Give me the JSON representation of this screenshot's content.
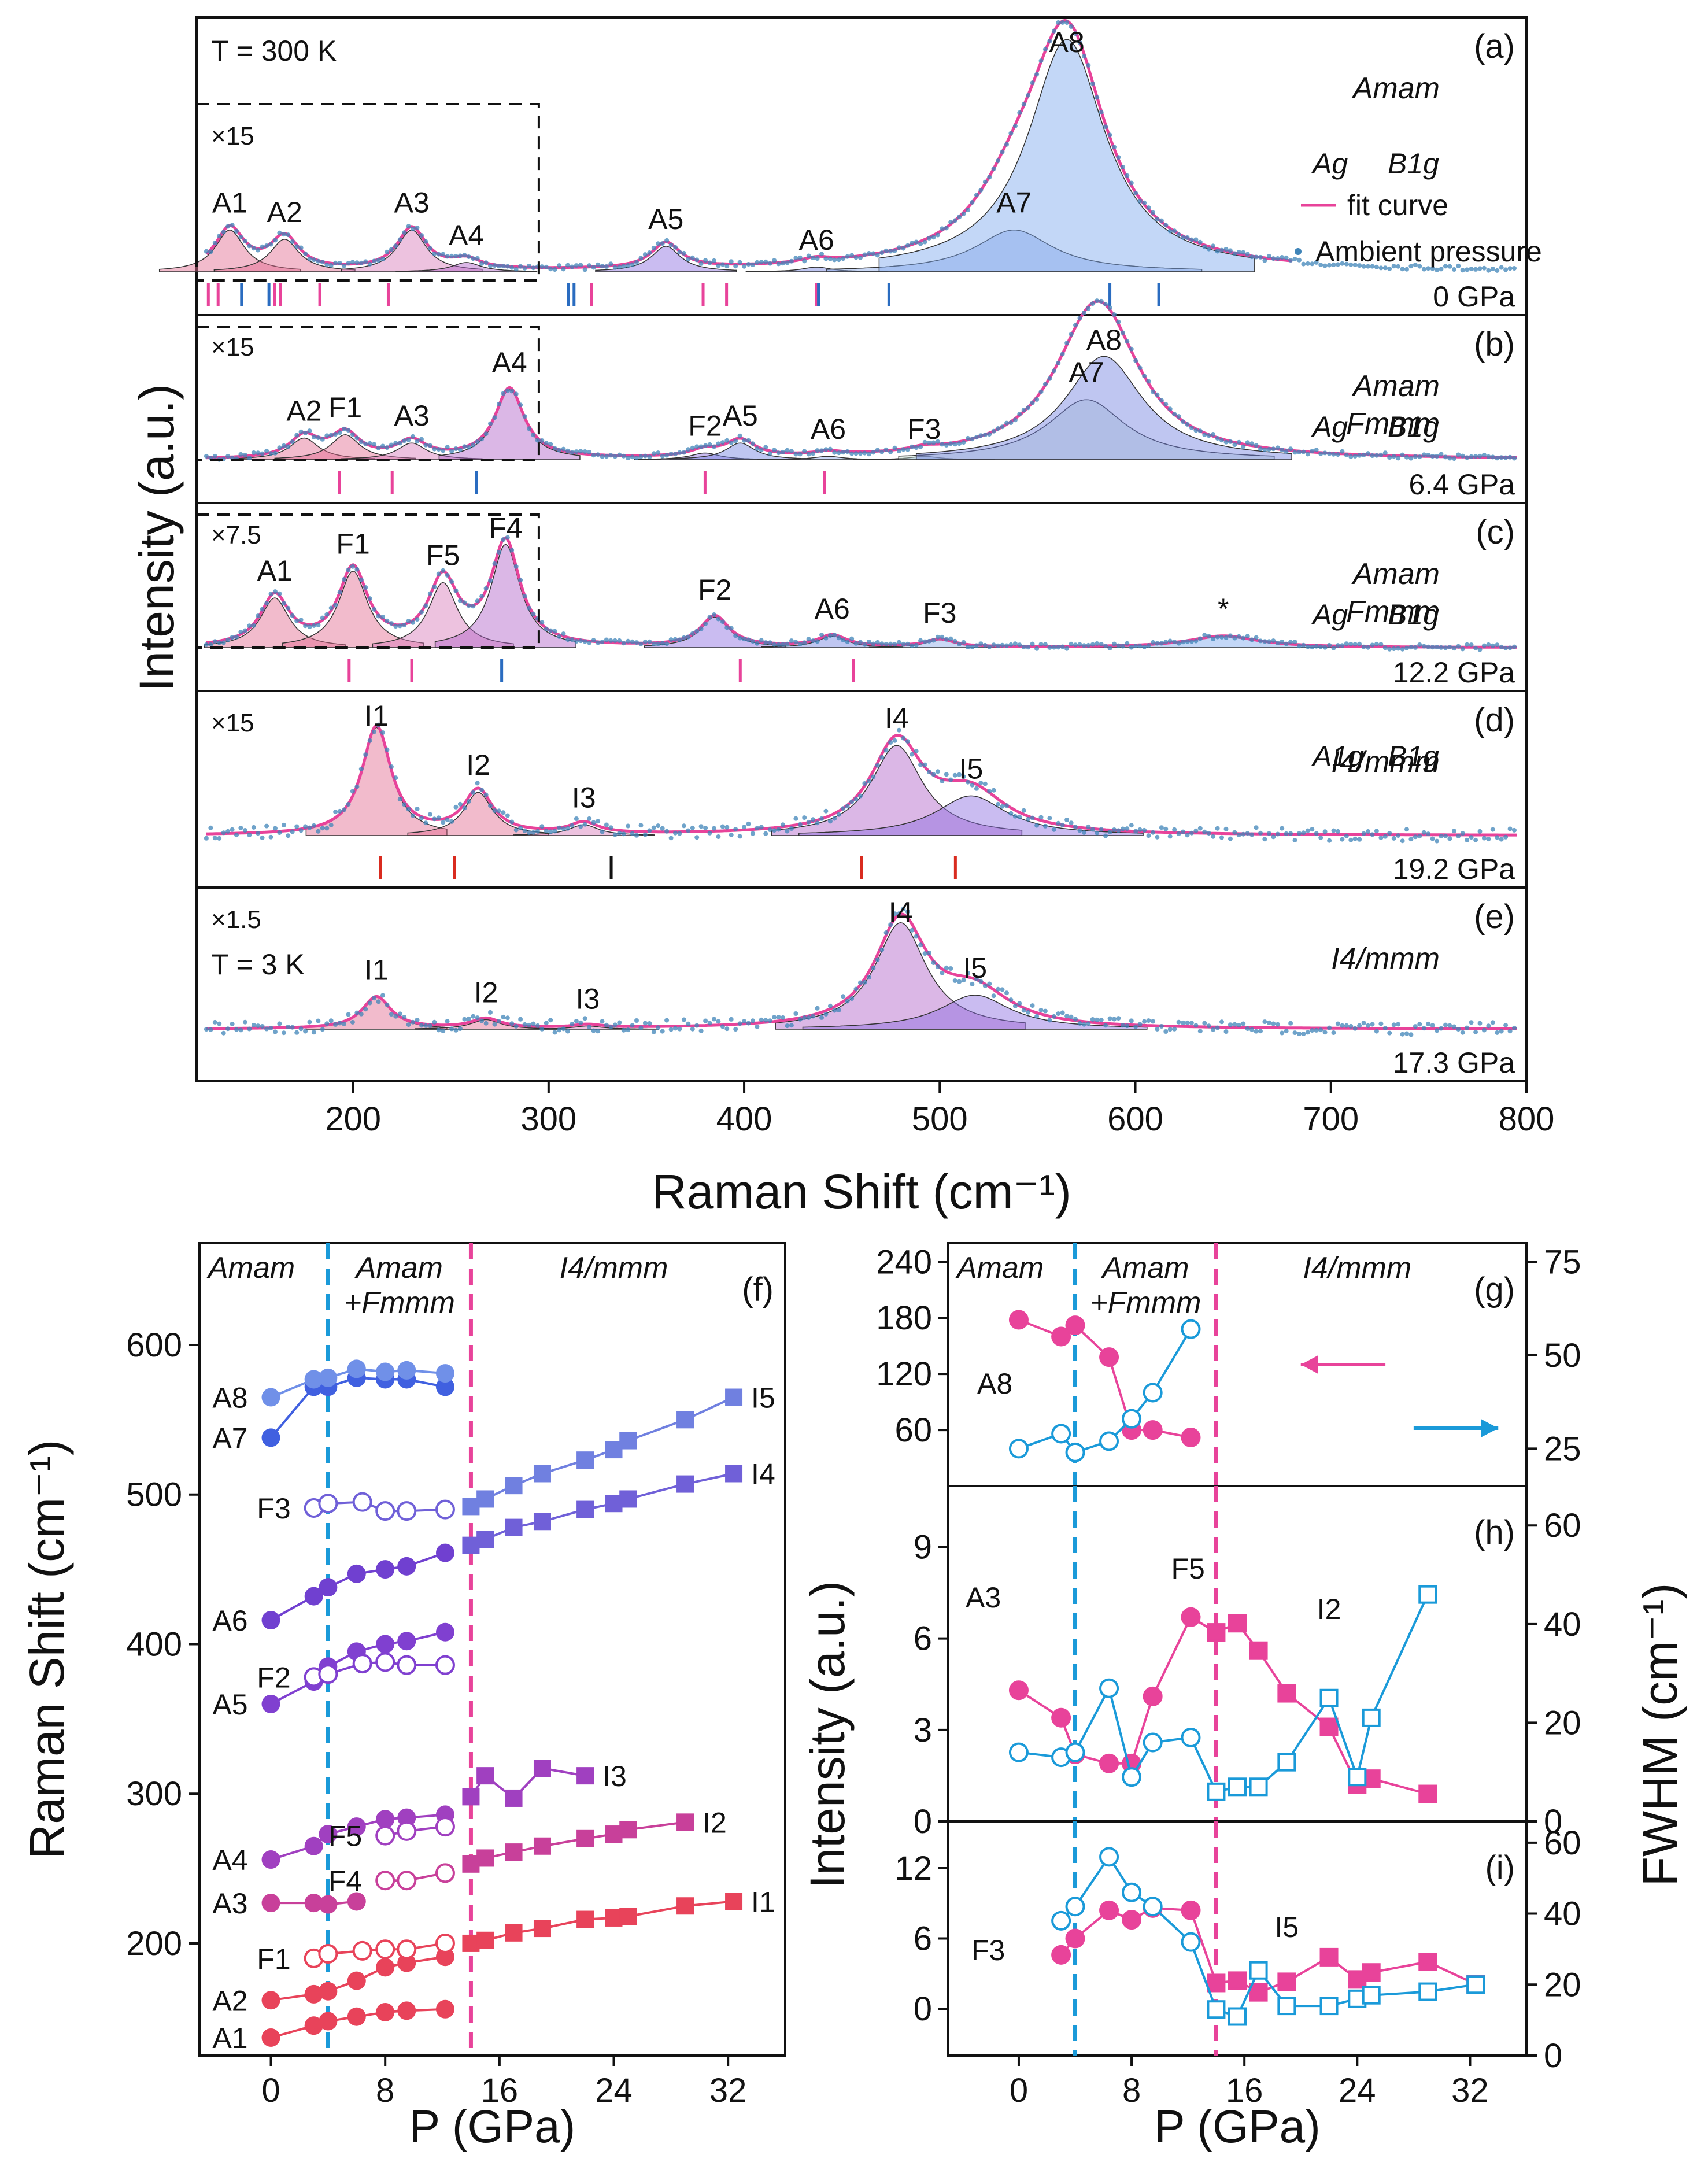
{
  "raman_spectra": {
    "xlabel": "Raman Shift (cm⁻¹)",
    "xticks": [
      "200",
      "300",
      "400",
      "500",
      "600",
      "700",
      "800"
    ],
    "ylabel": "Intensity (a.u.)",
    "panels": [
      {
        "id": "(a)",
        "pressure": "0 GPa",
        "temperature": "T = 300 K",
        "zoom": "×15",
        "phase_labels": [
          "Amam"
        ],
        "legend_items": [
          "Ag",
          "B1g",
          "fit curve",
          "Ambient pressure"
        ],
        "peaks": [
          {
            "label": "A1",
            "position": 137,
            "height": 0.18
          },
          {
            "label": "A2",
            "position": 165,
            "height": 0.14
          },
          {
            "label": "A3",
            "position": 230,
            "height": 0.18
          },
          {
            "label": "A4",
            "position": 258,
            "height": 0.04
          },
          {
            "label": "A5",
            "position": 360,
            "height": 0.11
          },
          {
            "label": "A6",
            "position": 437,
            "height": 0.02
          },
          {
            "label": "A7",
            "position": 538,
            "height": 0.18
          },
          {
            "label": "A8",
            "position": 565,
            "height": 1.0
          }
        ],
        "ag_ticks": [
          126,
          131,
          160,
          163,
          183,
          218,
          322,
          379,
          391,
          437
        ],
        "b1g_ticks": [
          143,
          157,
          310,
          313,
          438,
          474,
          587,
          612
        ]
      },
      {
        "id": "(b)",
        "pressure": "6.4 GPa",
        "zoom": "×15",
        "phase_labels": [
          "Amam",
          "Fmmm"
        ],
        "legend_items": [
          "Ag",
          "B1g"
        ],
        "peaks": [
          {
            "label": "A2",
            "position": 175,
            "height": 0.13
          },
          {
            "label": "F1",
            "position": 196,
            "height": 0.15
          },
          {
            "label": "A3",
            "position": 230,
            "height": 0.1
          },
          {
            "label": "A4",
            "position": 280,
            "height": 0.42
          },
          {
            "label": "F2",
            "position": 380,
            "height": 0.04
          },
          {
            "label": "A5",
            "position": 398,
            "height": 0.1
          },
          {
            "label": "A6",
            "position": 443,
            "height": 0.02
          },
          {
            "label": "F3",
            "position": 492,
            "height": 0.02
          },
          {
            "label": "A7",
            "position": 575,
            "height": 0.36
          },
          {
            "label": "A8",
            "position": 584,
            "height": 0.62
          }
        ],
        "ag_ticks": [
          193,
          220,
          380,
          441
        ],
        "b1g_ticks": [
          263
        ]
      },
      {
        "id": "(c)",
        "pressure": "12.2 GPa",
        "zoom": "×7.5",
        "phase_labels": [
          "Amam",
          "Fmmm"
        ],
        "legend_items": [
          "Ag",
          "B1g"
        ],
        "annotation": "*",
        "peaks": [
          {
            "label": "A1",
            "position": 160,
            "height": 0.13
          },
          {
            "label": "F1",
            "position": 200,
            "height": 0.2
          },
          {
            "label": "F5",
            "position": 246,
            "height": 0.17
          },
          {
            "label": "F4",
            "position": 278,
            "height": 0.27
          },
          {
            "label": "F2",
            "position": 385,
            "height": 0.08
          },
          {
            "label": "A6",
            "position": 445,
            "height": 0.03
          },
          {
            "label": "F3",
            "position": 500,
            "height": 0.02
          },
          {
            "label": "*",
            "position": 645,
            "height": 0.03
          }
        ],
        "ag_ticks": [
          198,
          230,
          398,
          456
        ],
        "b1g_ticks": [
          276
        ]
      },
      {
        "id": "(d)",
        "pressure": "19.2 GPa",
        "zoom": "×15",
        "phase_labels": [
          "I4/mmm"
        ],
        "legend_items": [
          "A1g",
          "B1g"
        ],
        "peaks": [
          {
            "label": "I1",
            "position": 212,
            "height": 0.6
          },
          {
            "label": "I2",
            "position": 264,
            "height": 0.24
          },
          {
            "label": "I3",
            "position": 318,
            "height": 0.06
          },
          {
            "label": "I4",
            "position": 478,
            "height": 0.5
          },
          {
            "label": "I5",
            "position": 516,
            "height": 0.22
          }
        ],
        "a1g_ticks": [
          214,
          252,
          460,
          508
        ],
        "b1g_ticks": [
          332
        ]
      },
      {
        "id": "(e)",
        "pressure": "17.3 GPa",
        "temperature": "T = 3 K",
        "zoom": "×1.5",
        "phase_labels": [
          "I4/mmm"
        ],
        "peaks": [
          {
            "label": "I1",
            "position": 212,
            "height": 0.3
          },
          {
            "label": "I2",
            "position": 268,
            "height": 0.09
          },
          {
            "label": "I3",
            "position": 320,
            "height": 0.03
          },
          {
            "label": "I4",
            "position": 480,
            "height": 1.0
          },
          {
            "label": "I5",
            "position": 518,
            "height": 0.32
          }
        ]
      }
    ]
  },
  "chart_data": [
    {
      "type": "scatter",
      "id": "(f)",
      "xlabel": "P (GPa)",
      "ylabel": "Raman Shift (cm⁻¹)",
      "xlim": [
        -5,
        36
      ],
      "ylim": [
        125,
        668
      ],
      "xticks": [
        0,
        8,
        16,
        24,
        32
      ],
      "yticks": [
        200,
        300,
        400,
        500,
        600
      ],
      "phase_labels": [
        "Amam",
        "Amam",
        "+Fmmm",
        "I4/mmm"
      ],
      "phase_boundaries": [
        4,
        14
      ],
      "series": [
        {
          "name": "A1",
          "x": [
            0,
            3,
            4,
            6,
            8,
            9.5,
            12.2
          ],
          "y": [
            137,
            145,
            148,
            151,
            154,
            155,
            156
          ],
          "color": "#e8435a",
          "marker": "circle"
        },
        {
          "name": "A2",
          "x": [
            0,
            3,
            4,
            6,
            8,
            9.5,
            12.2
          ],
          "y": [
            162,
            166,
            168,
            175,
            184,
            187,
            191
          ],
          "color": "#e8435a",
          "marker": "circle"
        },
        {
          "name": "F1",
          "x": [
            3,
            4,
            6.4,
            8,
            9.5,
            12.2
          ],
          "y": [
            190,
            193,
            195,
            196,
            196,
            200
          ],
          "color": "#e8435a",
          "marker": "open"
        },
        {
          "name": "I1",
          "x": [
            14,
            15,
            17,
            19,
            22,
            24,
            25,
            29,
            32.4
          ],
          "y": [
            200,
            202,
            207,
            210,
            216,
            217,
            218,
            225,
            228
          ],
          "color": "#e8435a",
          "marker": "square"
        },
        {
          "name": "A3",
          "x": [
            0,
            3,
            4,
            6
          ],
          "y": [
            227,
            227,
            226,
            228
          ],
          "color": "#c8409a",
          "marker": "circle"
        },
        {
          "name": "F4",
          "x": [
            8,
            9.5,
            12.2
          ],
          "y": [
            242,
            242,
            247
          ],
          "color": "#c8409a",
          "marker": "open"
        },
        {
          "name": "I2",
          "x": [
            14,
            15,
            17,
            19,
            22,
            24,
            25,
            29
          ],
          "y": [
            253,
            257,
            261,
            265,
            270,
            273,
            276,
            281
          ],
          "color": "#c8409a",
          "marker": "square"
        },
        {
          "name": "A4",
          "x": [
            0,
            3,
            4,
            6,
            8,
            9.5,
            12.2
          ],
          "y": [
            256,
            265,
            273,
            278,
            283,
            284,
            286
          ],
          "color": "#a040c0",
          "marker": "circle"
        },
        {
          "name": "F5",
          "x": [
            8,
            9.5,
            12.2
          ],
          "y": [
            272,
            275,
            278
          ],
          "color": "#a040c0",
          "marker": "open"
        },
        {
          "name": "I3",
          "x": [
            14,
            15,
            17,
            19,
            22
          ],
          "y": [
            298,
            312,
            297,
            317,
            312
          ],
          "color": "#a040c0",
          "marker": "square"
        },
        {
          "name": "A5",
          "x": [
            0,
            3,
            4,
            6,
            8,
            9.5,
            12.2
          ],
          "y": [
            360,
            375,
            385,
            395,
            400,
            402,
            408
          ],
          "color": "#8040d0",
          "marker": "circle"
        },
        {
          "name": "F2",
          "x": [
            3,
            4,
            6.4,
            8,
            9.5,
            12.2
          ],
          "y": [
            378,
            380,
            387,
            388,
            386,
            386
          ],
          "color": "#8040d0",
          "marker": "open"
        },
        {
          "name": "A6",
          "x": [
            0,
            3,
            4,
            6,
            8,
            9.5,
            12.2
          ],
          "y": [
            416,
            432,
            438,
            447,
            450,
            452,
            461
          ],
          "color": "#7040d0",
          "marker": "circle"
        },
        {
          "name": "I4",
          "x": [
            14,
            15,
            17,
            19,
            22,
            24,
            25,
            29,
            32.4
          ],
          "y": [
            466,
            470,
            478,
            482,
            490,
            494,
            497,
            507,
            514
          ],
          "color": "#7060d8",
          "marker": "square"
        },
        {
          "name": "F3",
          "x": [
            3,
            4,
            6.4,
            8,
            9.5,
            12.2
          ],
          "y": [
            491,
            494,
            495,
            489,
            489,
            490
          ],
          "color": "#7060d8",
          "marker": "open"
        },
        {
          "name": "I5",
          "x": [
            14,
            15,
            17,
            19,
            22,
            24,
            25,
            29,
            32.4
          ],
          "y": [
            492,
            497,
            506,
            514,
            523,
            530,
            536,
            550,
            565
          ],
          "color": "#7080e0",
          "marker": "square"
        },
        {
          "name": "A7",
          "x": [
            0,
            3,
            4,
            6,
            8,
            9.5,
            12.2
          ],
          "y": [
            538,
            572,
            572,
            578,
            577,
            577,
            572
          ],
          "color": "#4060e0",
          "marker": "circle"
        },
        {
          "name": "A8",
          "x": [
            0,
            3,
            4,
            6,
            8,
            9.5,
            12.2
          ],
          "y": [
            565,
            577,
            578,
            584,
            582,
            583,
            581
          ],
          "color": "#7090e8",
          "marker": "circle"
        }
      ]
    },
    {
      "type": "scatter",
      "id": "(g)",
      "ylabel_left": "Intensity (a.u.)",
      "ylabel_right": "FWHM (cm⁻¹)",
      "xlim": [
        -5,
        36
      ],
      "ylim_left": [
        0,
        260
      ],
      "ylim_right": [
        15,
        80
      ],
      "yticks_left": [
        60,
        120,
        180,
        240
      ],
      "yticks_right": [
        25,
        50,
        75
      ],
      "phase_labels": [
        "Amam",
        "Amam",
        "+Fmmm",
        "I4/mmm"
      ],
      "mode_label": "A8",
      "series": [
        {
          "name": "Intensity",
          "axis": "left",
          "x": [
            0,
            3,
            4,
            6.4,
            8,
            9.5,
            12.2
          ],
          "y": [
            178,
            160,
            172,
            138,
            60,
            60,
            52
          ],
          "color": "#e8439a",
          "marker": "filled-circle"
        },
        {
          "name": "FWHM",
          "axis": "right",
          "x": [
            0,
            3,
            4,
            6.4,
            8,
            9.5,
            12.2
          ],
          "y": [
            25,
            29,
            24,
            27,
            33,
            40,
            57
          ],
          "color": "#1a9ad9",
          "marker": "open-circle"
        }
      ]
    },
    {
      "type": "scatter",
      "id": "(h)",
      "xlim": [
        -5,
        36
      ],
      "ylim_left": [
        0,
        11
      ],
      "ylim_right": [
        0,
        68
      ],
      "yticks_left": [
        0,
        3,
        6,
        9
      ],
      "yticks_right": [
        0,
        20,
        40,
        60
      ],
      "mode_labels": [
        "A3",
        "F5",
        "I2"
      ],
      "series": [
        {
          "name": "Intensity",
          "axis": "left",
          "x": [
            0,
            3,
            4,
            6.4,
            8,
            9.5,
            12.2,
            14,
            15.5,
            17,
            19,
            22,
            24,
            25,
            29
          ],
          "y": [
            4.3,
            3.4,
            2.2,
            1.9,
            1.9,
            4.1,
            6.7,
            6.2,
            6.5,
            5.6,
            4.2,
            3.1,
            1.2,
            1.4,
            0.9
          ],
          "color": "#e8439a",
          "marker": "filled"
        },
        {
          "name": "FWHM",
          "axis": "right",
          "x": [
            0,
            3,
            4,
            6.4,
            8,
            9.5,
            12.2,
            14,
            15.5,
            17,
            19,
            22,
            24,
            25,
            29
          ],
          "y": [
            14,
            13,
            14,
            27,
            9,
            16,
            17,
            6,
            7,
            7,
            12,
            25,
            9,
            21,
            46
          ],
          "color": "#1a9ad9",
          "marker": "open"
        }
      ]
    },
    {
      "type": "scatter",
      "id": "(i)",
      "xlabel": "P (GPa)",
      "xticks": [
        0,
        8,
        16,
        24,
        32
      ],
      "xlim": [
        -5,
        36
      ],
      "ylim_left": [
        -4,
        16
      ],
      "ylim_right": [
        0,
        66
      ],
      "yticks_left": [
        0,
        6,
        12
      ],
      "yticks_right": [
        0,
        20,
        40,
        60
      ],
      "mode_labels": [
        "F3",
        "I5"
      ],
      "series": [
        {
          "name": "Intensity",
          "axis": "left",
          "x": [
            3,
            4,
            6.4,
            8,
            9.5,
            12.2,
            14,
            15.5,
            17,
            19,
            22,
            24,
            25,
            29,
            32.4
          ],
          "y": [
            4.6,
            6.0,
            8.4,
            7.6,
            8.6,
            8.4,
            2.2,
            2.4,
            1.4,
            2.3,
            4.4,
            2.5,
            3.1,
            4.0,
            2.1
          ],
          "color": "#e8439a",
          "marker": "filled"
        },
        {
          "name": "FWHM",
          "axis": "right",
          "x": [
            3,
            4,
            6.4,
            8,
            9.5,
            12.2,
            14,
            15.5,
            17,
            19,
            22,
            24,
            25,
            29,
            32.4
          ],
          "y": [
            38,
            42,
            56,
            46,
            42,
            32,
            13,
            11,
            24,
            14,
            14,
            16,
            17,
            18,
            20
          ],
          "color": "#1a9ad9",
          "marker": "open"
        }
      ]
    }
  ]
}
